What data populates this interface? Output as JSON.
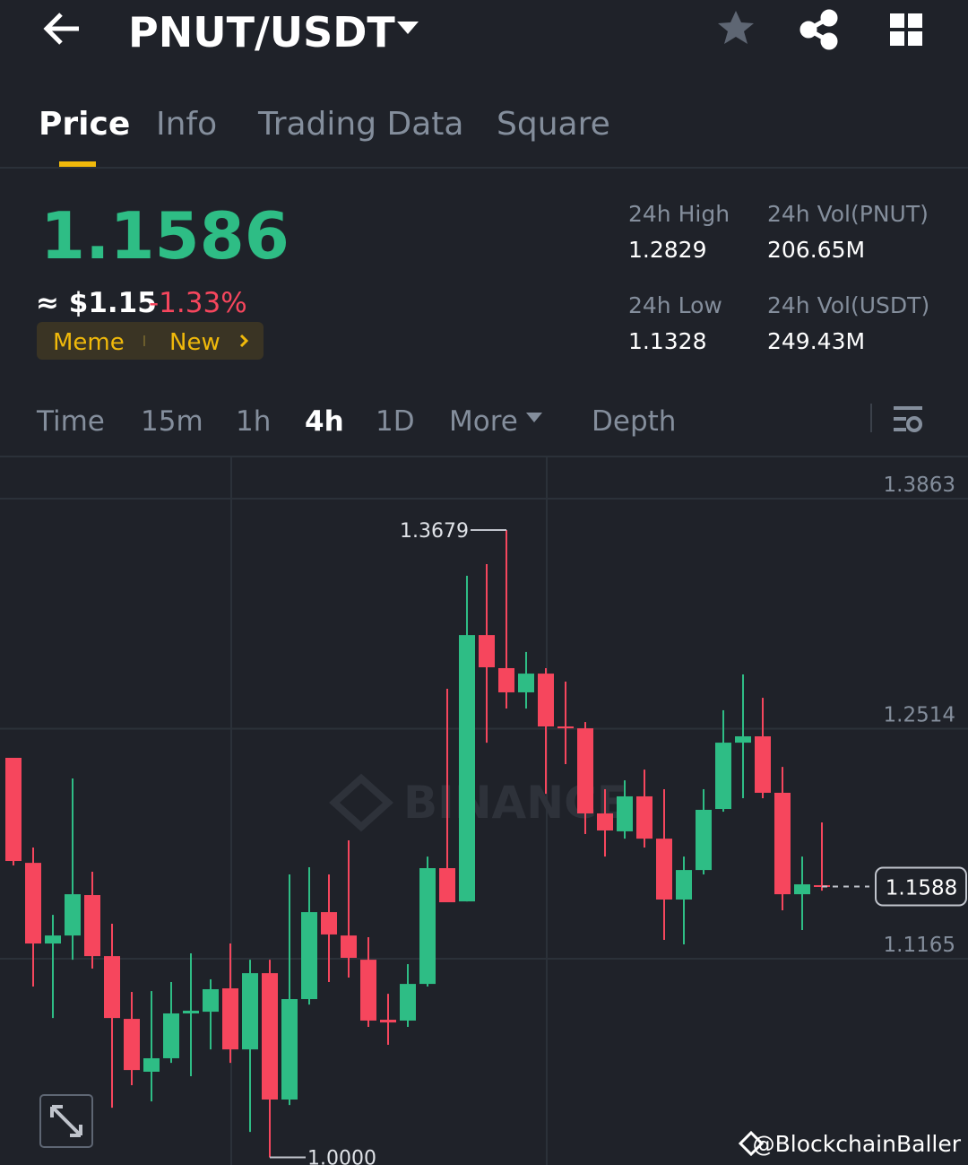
{
  "header": {
    "pair": "PNUT/USDT"
  },
  "tabs": [
    "Price",
    "Info",
    "Trading Data",
    "Square"
  ],
  "price": {
    "last": "1.1586",
    "approx": "≈ $1.15",
    "change": "-1.33%"
  },
  "tags": [
    "Meme",
    "New"
  ],
  "stats": [
    {
      "label": "24h High",
      "value": "1.2829"
    },
    {
      "label": "24h Vol(PNUT)",
      "value": "206.65M"
    },
    {
      "label": "24h Low",
      "value": "1.1328"
    },
    {
      "label": "24h Vol(USDT)",
      "value": "249.43M"
    }
  ],
  "intervals": [
    "Time",
    "15m",
    "1h",
    "4h",
    "1D",
    "More",
    "Depth"
  ],
  "watermark": "BINANCE",
  "credit": "@BlockchainBaller",
  "chart_data": {
    "type": "candlestick",
    "up_color": "#2ebd85",
    "down_color": "#f6465d",
    "open": [
      1.2343,
      1.1727,
      1.1254,
      1.1301,
      1.1538,
      1.118,
      1.0812,
      1.0502,
      1.0581,
      1.0844,
      1.0854,
      1.0991,
      1.0633,
      1.108,
      1.0339,
      1.0928,
      1.1438,
      1.1301,
      1.1159,
      1.0807,
      1.0802,
      1.1017,
      1.1696,
      1.1501,
      1.3063,
      1.2869,
      1.2727,
      1.2837,
      1.2527,
      1.2516,
      1.2017,
      1.1912,
      1.2117,
      1.1869,
      1.1512,
      1.1685,
      1.2043,
      1.2432,
      1.2469,
      1.2138,
      1.1543,
      1.1596
    ],
    "high": [
      1.2343,
      1.1817,
      1.1422,
      1.2222,
      1.1675,
      1.137,
      1.097,
      1.0975,
      1.1028,
      1.1196,
      1.1044,
      1.1254,
      1.1159,
      1.1159,
      1.1659,
      1.1701,
      1.1659,
      1.1859,
      1.1291,
      1.0959,
      1.1133,
      1.1764,
      1.2748,
      1.3411,
      1.3479,
      1.3679,
      1.2964,
      1.2869,
      1.279,
      1.2553,
      1.2159,
      1.2211,
      1.2274,
      1.2159,
      1.1764,
      1.2159,
      1.2622,
      1.2832,
      1.2695,
      1.229,
      1.1764,
      1.1964
    ],
    "low": [
      1.1712,
      1.1002,
      1.0817,
      1.1159,
      1.1107,
      1.0291,
      1.0423,
      1.0328,
      1.0554,
      1.0476,
      1.0633,
      1.0554,
      1.0149,
      1.0,
      1.0307,
      1.0896,
      1.1028,
      1.1054,
      1.0765,
      1.066,
      1.0765,
      1.1002,
      1.1496,
      1.1501,
      1.2432,
      1.2632,
      1.2632,
      1.2132,
      1.2306,
      1.1896,
      1.1764,
      1.1869,
      1.1817,
      1.1275,
      1.1249,
      1.1659,
      1.2027,
      1.2106,
      1.2106,
      1.1449,
      1.1333,
      1.1564
    ],
    "close": [
      1.1738,
      1.1254,
      1.1301,
      1.1543,
      1.118,
      1.0817,
      1.0512,
      1.0581,
      1.0844,
      1.086,
      1.0986,
      1.0633,
      1.108,
      1.0339,
      1.0928,
      1.1438,
      1.1307,
      1.117,
      1.0802,
      1.0791,
      1.1017,
      1.1696,
      1.1496,
      1.3063,
      1.2874,
      1.2727,
      1.2837,
      1.2527,
      1.2516,
      1.2017,
      1.1917,
      1.2117,
      1.1869,
      1.1512,
      1.1685,
      1.2038,
      1.2432,
      1.2469,
      1.2138,
      1.1543,
      1.1601,
      1.1588
    ],
    "ylim": [
      0.9955,
      1.4105
    ],
    "yticks": [
      1.1165,
      1.2514,
      1.3863
    ],
    "annotations": [
      {
        "value": 1.3679,
        "label": "1.3679"
      },
      {
        "value": 1.0,
        "label": "1.0000"
      }
    ],
    "last_price": {
      "value": 1.1588,
      "label": "1.1588"
    }
  }
}
